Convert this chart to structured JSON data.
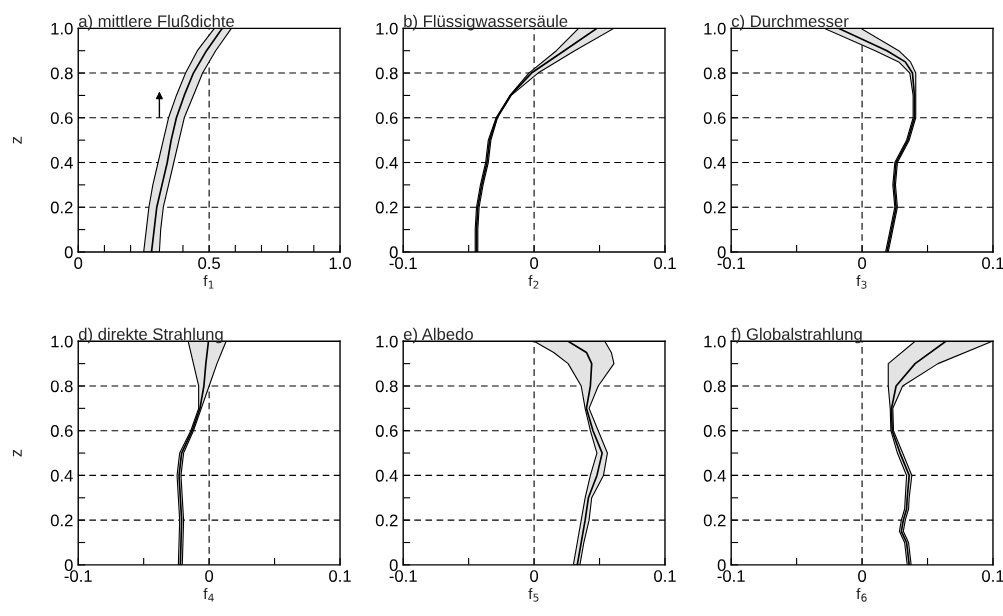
{
  "chart_data": [
    {
      "type": "line",
      "orientation": "horizontal",
      "title": "a) mittlere Flußdichte",
      "xlabel": "f$_{1}$",
      "ylabel": "z",
      "grid": true,
      "xlim": [
        0,
        1
      ],
      "xticks": [
        0,
        {
          "value": 0.1,
          "label": null
        },
        {
          "value": 0.2,
          "label": null
        },
        {
          "value": 0.3,
          "label": null
        },
        {
          "value": 0.4,
          "label": null
        },
        0.5,
        {
          "value": 0.6,
          "label": null
        },
        {
          "value": 0.7,
          "label": null
        },
        {
          "value": 0.8,
          "label": null
        },
        {
          "value": 0.9,
          "label": null
        },
        {
          "value": 1,
          "label": "1.0"
        }
      ],
      "ylim": [
        0,
        1
      ],
      "yticks": [
        0,
        {
          "value": 0.1,
          "label": null
        },
        0.2,
        {
          "value": 0.3,
          "label": null
        },
        0.4,
        {
          "value": 0.5,
          "label": null
        },
        0.6,
        {
          "value": 0.7,
          "label": null
        },
        0.8,
        {
          "value": 0.9,
          "label": null
        },
        {
          "value": 1,
          "label": "1.0"
        }
      ],
      "series": [
        {
          "color": "#000000",
          "x": [
            0,
            0.1,
            0.2,
            0.3,
            0.4,
            0.5,
            0.6,
            0.7,
            0.8,
            0.9,
            1.0
          ],
          "values": [
            0.28,
            0.29,
            0.3,
            0.32,
            0.34,
            0.355,
            0.375,
            0.405,
            0.44,
            0.49,
            0.55
          ],
          "lower": [
            0.25,
            0.26,
            0.27,
            0.285,
            0.305,
            0.325,
            0.345,
            0.375,
            0.41,
            0.455,
            0.52
          ],
          "upper": [
            0.31,
            0.315,
            0.325,
            0.345,
            0.365,
            0.385,
            0.405,
            0.44,
            0.475,
            0.525,
            0.585
          ]
        }
      ]
    },
    {
      "type": "line",
      "orientation": "horizontal",
      "title": "b) Flüssigwassersäule",
      "xlabel": "f$_{2}$",
      "grid": true,
      "xlim": [
        -0.1,
        0.1
      ],
      "xticks": [
        -0.1,
        {
          "value": -0.05,
          "label": null
        },
        0,
        {
          "value": 0.05,
          "label": null
        },
        0.1
      ],
      "ylim": [
        0,
        1
      ],
      "yticks": [
        0,
        {
          "value": 0.1,
          "label": null
        },
        0.2,
        {
          "value": 0.3,
          "label": null
        },
        0.4,
        {
          "value": 0.5,
          "label": null
        },
        0.6,
        {
          "value": 0.7,
          "label": null
        },
        0.8,
        {
          "value": 0.9,
          "label": null
        },
        {
          "value": 1,
          "label": "1.0"
        }
      ],
      "series": [
        {
          "color": "#000000",
          "x": [
            0,
            0.1,
            0.2,
            0.3,
            0.4,
            0.45,
            0.5,
            0.6,
            0.7,
            0.8,
            0.9,
            1.0
          ],
          "values": [
            -0.044,
            -0.044,
            -0.043,
            -0.04,
            -0.036,
            -0.035,
            -0.034,
            -0.0285,
            -0.018,
            -0.002,
            0.023,
            0.048
          ],
          "lower": [
            -0.045,
            -0.045,
            -0.044,
            -0.041,
            -0.037,
            -0.036,
            -0.035,
            -0.029,
            -0.0185,
            -0.004,
            0.017,
            0.034
          ],
          "upper": [
            -0.043,
            -0.043,
            -0.042,
            -0.039,
            -0.035,
            -0.034,
            -0.033,
            -0.028,
            -0.0175,
            0.003,
            0.031,
            0.061
          ]
        }
      ]
    },
    {
      "type": "line",
      "orientation": "horizontal",
      "title": "c) Durchmesser",
      "xlabel": "f$_{3}$",
      "grid": true,
      "xlim": [
        -0.1,
        0.1
      ],
      "xticks": [
        -0.1,
        {
          "value": -0.05,
          "label": null
        },
        0,
        {
          "value": 0.05,
          "label": null
        },
        0.1
      ],
      "ylim": [
        0,
        1
      ],
      "yticks": [
        0,
        {
          "value": 0.1,
          "label": null
        },
        0.2,
        {
          "value": 0.3,
          "label": null
        },
        0.4,
        {
          "value": 0.5,
          "label": null
        },
        0.6,
        {
          "value": 0.7,
          "label": null
        },
        0.8,
        {
          "value": 0.9,
          "label": null
        },
        {
          "value": 1,
          "label": "1.0"
        }
      ],
      "series": [
        {
          "color": "#000000",
          "x": [
            0,
            0.1,
            0.2,
            0.3,
            0.4,
            0.5,
            0.6,
            0.7,
            0.8,
            0.85,
            0.9,
            1.0
          ],
          "values": [
            0.019,
            0.0225,
            0.026,
            0.0245,
            0.026,
            0.035,
            0.04,
            0.04,
            0.0385,
            0.033,
            0.019,
            -0.018
          ],
          "lower": [
            0.018,
            0.0215,
            0.025,
            0.0235,
            0.025,
            0.034,
            0.039,
            0.039,
            0.0365,
            0.028,
            0.01,
            -0.029
          ],
          "upper": [
            0.02,
            0.0235,
            0.027,
            0.0255,
            0.027,
            0.036,
            0.041,
            0.041,
            0.041,
            0.037,
            0.028,
            -0.001
          ]
        }
      ]
    },
    {
      "type": "line",
      "orientation": "horizontal",
      "title": "d) direkte Strahlung",
      "xlabel": "f$_{4}$",
      "ylabel": "z",
      "grid": true,
      "xlim": [
        -0.1,
        0.1
      ],
      "xticks": [
        -0.1,
        {
          "value": -0.05,
          "label": null
        },
        0,
        {
          "value": 0.05,
          "label": null
        },
        0.1
      ],
      "ylim": [
        0,
        1
      ],
      "yticks": [
        0,
        {
          "value": 0.1,
          "label": null
        },
        0.2,
        {
          "value": 0.3,
          "label": null
        },
        0.4,
        {
          "value": 0.5,
          "label": null
        },
        0.6,
        {
          "value": 0.7,
          "label": null
        },
        0.8,
        {
          "value": 0.9,
          "label": null
        },
        {
          "value": 1,
          "label": "1.0"
        }
      ],
      "series": [
        {
          "color": "#000000",
          "x": [
            0,
            0.1,
            0.2,
            0.3,
            0.4,
            0.5,
            0.6,
            0.7,
            0.8,
            0.9,
            1.0
          ],
          "values": [
            -0.022,
            -0.0215,
            -0.021,
            -0.022,
            -0.023,
            -0.021,
            -0.013,
            -0.007,
            -0.004,
            -0.0025,
            -0.0005
          ],
          "lower": [
            -0.0235,
            -0.023,
            -0.0225,
            -0.0235,
            -0.0245,
            -0.0225,
            -0.014,
            -0.008,
            -0.008,
            -0.012,
            -0.016
          ],
          "upper": [
            -0.0205,
            -0.02,
            -0.0195,
            -0.0205,
            -0.0215,
            -0.0195,
            -0.012,
            -0.006,
            0.0,
            0.006,
            0.013
          ]
        }
      ]
    },
    {
      "type": "line",
      "orientation": "horizontal",
      "title": "e) Albedo",
      "xlabel": "f$_{5}$",
      "grid": true,
      "xlim": [
        -0.1,
        0.1
      ],
      "xticks": [
        -0.1,
        {
          "value": -0.05,
          "label": null
        },
        0,
        {
          "value": 0.05,
          "label": null
        },
        0.1
      ],
      "ylim": [
        0,
        1
      ],
      "yticks": [
        0,
        {
          "value": 0.1,
          "label": null
        },
        0.2,
        {
          "value": 0.3,
          "label": null
        },
        0.4,
        {
          "value": 0.5,
          "label": null
        },
        0.6,
        {
          "value": 0.7,
          "label": null
        },
        0.8,
        {
          "value": 0.9,
          "label": null
        },
        {
          "value": 1,
          "label": "1.0"
        }
      ],
      "series": [
        {
          "color": "#000000",
          "x": [
            0,
            0.1,
            0.2,
            0.3,
            0.4,
            0.5,
            0.6,
            0.7,
            0.8,
            0.9,
            0.95,
            1.0
          ],
          "values": [
            0.033,
            0.036,
            0.039,
            0.0415,
            0.048,
            0.052,
            0.045,
            0.04,
            0.043,
            0.044,
            0.04,
            0.026
          ],
          "lower": [
            0.03,
            0.033,
            0.036,
            0.039,
            0.043,
            0.048,
            0.043,
            0.039,
            0.036,
            0.026,
            0.015,
            0.0
          ],
          "upper": [
            0.035,
            0.038,
            0.042,
            0.044,
            0.053,
            0.056,
            0.049,
            0.042,
            0.049,
            0.061,
            0.059,
            0.054
          ]
        }
      ]
    },
    {
      "type": "line",
      "orientation": "horizontal",
      "title": "f) Globalstrahlung",
      "xlabel": "f$_{6}$",
      "grid": true,
      "xlim": [
        -0.1,
        0.1
      ],
      "xticks": [
        -0.1,
        {
          "value": -0.05,
          "label": null
        },
        0,
        {
          "value": 0.05,
          "label": null
        },
        0.1
      ],
      "ylim": [
        0,
        1
      ],
      "yticks": [
        0,
        {
          "value": 0.1,
          "label": null
        },
        0.2,
        {
          "value": 0.3,
          "label": null
        },
        0.4,
        {
          "value": 0.5,
          "label": null
        },
        0.6,
        {
          "value": 0.7,
          "label": null
        },
        0.8,
        {
          "value": 0.9,
          "label": null
        },
        {
          "value": 1,
          "label": "1.0"
        }
      ],
      "series": [
        {
          "color": "#000000",
          "x": [
            0,
            0.1,
            0.15,
            0.2,
            0.25,
            0.3,
            0.4,
            0.5,
            0.6,
            0.7,
            0.8,
            0.9,
            1.0
          ],
          "values": [
            0.036,
            0.034,
            0.03,
            0.0315,
            0.034,
            0.0345,
            0.036,
            0.029,
            0.023,
            0.0225,
            0.026,
            0.0405,
            0.064
          ],
          "lower": [
            0.0345,
            0.0325,
            0.0285,
            0.03,
            0.0325,
            0.033,
            0.034,
            0.027,
            0.022,
            0.0215,
            0.02,
            0.02,
            0.0405
          ],
          "upper": [
            0.0375,
            0.0355,
            0.0315,
            0.033,
            0.0355,
            0.036,
            0.038,
            0.031,
            0.024,
            0.0235,
            0.031,
            0.058,
            0.0995
          ]
        }
      ]
    }
  ]
}
